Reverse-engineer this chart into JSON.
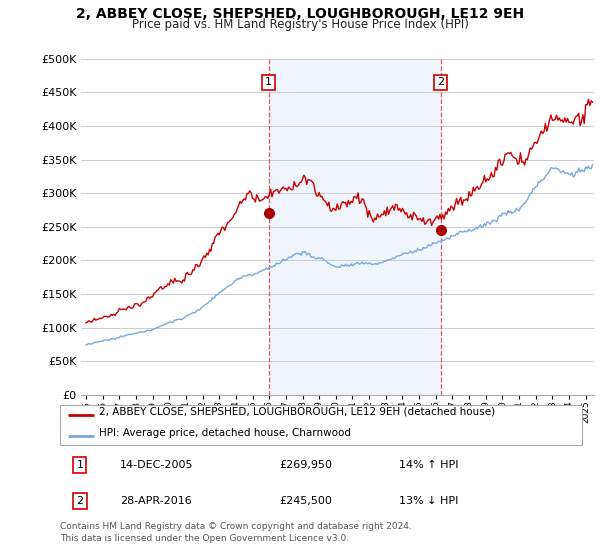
{
  "title": "2, ABBEY CLOSE, SHEPSHED, LOUGHBOROUGH, LE12 9EH",
  "subtitle": "Price paid vs. HM Land Registry's House Price Index (HPI)",
  "legend_property": "2, ABBEY CLOSE, SHEPSHED, LOUGHBOROUGH, LE12 9EH (detached house)",
  "legend_hpi": "HPI: Average price, detached house, Charnwood",
  "transaction1_date": "14-DEC-2005",
  "transaction1_price": "£269,950",
  "transaction1_hpi": "14% ↑ HPI",
  "transaction2_date": "28-APR-2016",
  "transaction2_price": "£245,500",
  "transaction2_hpi": "13% ↓ HPI",
  "footnote": "Contains HM Land Registry data © Crown copyright and database right 2024.\nThis data is licensed under the Open Government Licence v3.0.",
  "property_color": "#cc0000",
  "hpi_color": "#7aaadd",
  "vline_color": "#dd4444",
  "shade_color": "#ddeeff",
  "marker_color": "#aa0000",
  "ylim": [
    0,
    500000
  ],
  "xlim_start": 1994.7,
  "xlim_end": 2025.5,
  "background_color": "#ffffff",
  "grid_color": "#cccccc",
  "title_fontsize": 10,
  "subtitle_fontsize": 8.5
}
